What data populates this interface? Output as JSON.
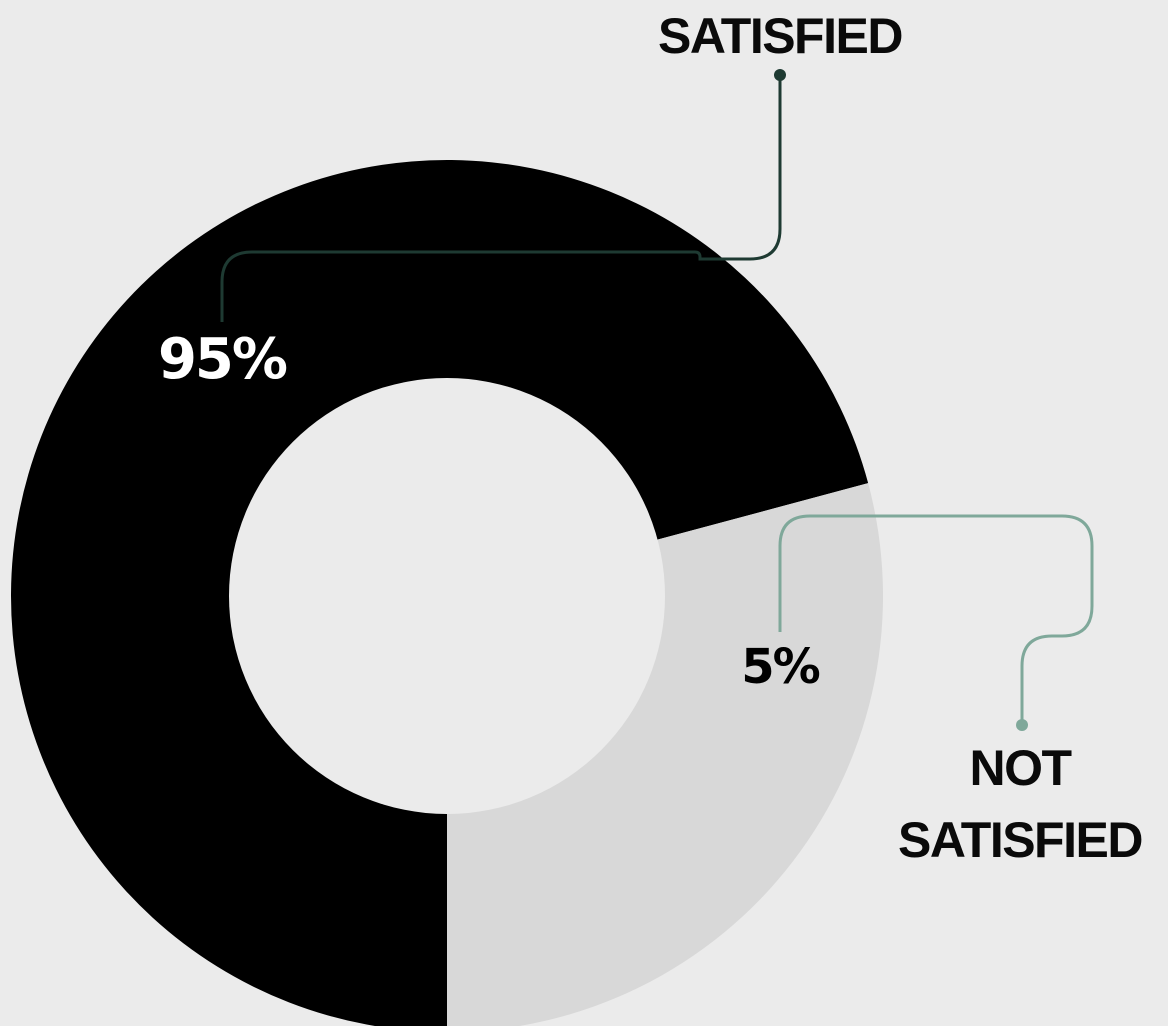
{
  "chart_data": {
    "type": "pie",
    "donut": true,
    "legend": "none",
    "slices": [
      {
        "label": "SATISFIED",
        "label_lines": [
          "SATISFIED"
        ],
        "value": 95,
        "value_label": "95%",
        "color": "#000000",
        "label_color": "#ffffff",
        "leader_color": "#1e3a32"
      },
      {
        "label": "NOT SATISFIED",
        "label_lines": [
          "NOT",
          "SATISFIED"
        ],
        "value": 5,
        "value_label": "5%",
        "color": "#d8d8d8",
        "label_color": "#000000",
        "leader_color": "#7fa89a"
      }
    ]
  },
  "colors": {
    "background": "#ebebeb",
    "hole": "#ebebeb",
    "category_text": "#0a0a0a"
  }
}
